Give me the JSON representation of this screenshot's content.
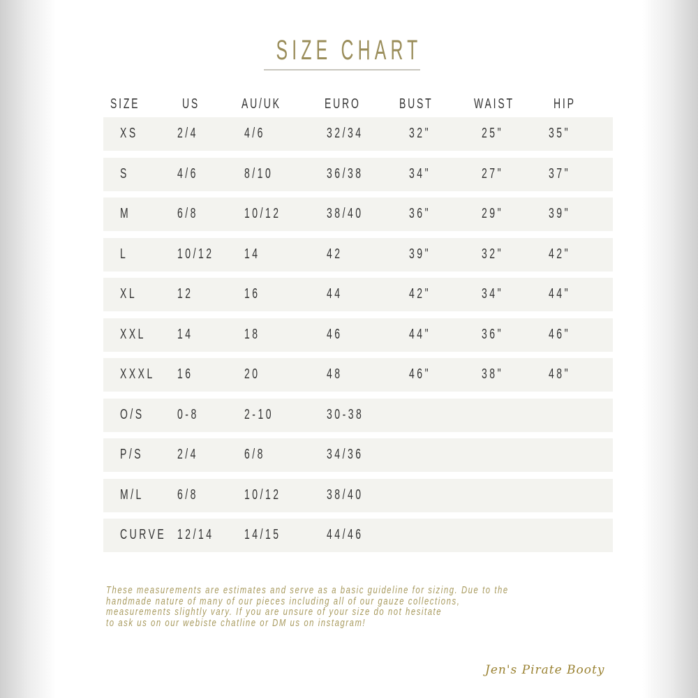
{
  "title": "SIZE CHART",
  "columns": [
    "SIZE",
    "US",
    "AU/UK",
    "EURO",
    "BUST",
    "WAIST",
    "HIP"
  ],
  "rows": [
    [
      "XS",
      "2/4",
      "4/6",
      "32/34",
      "32\"",
      "25\"",
      "35\""
    ],
    [
      "S",
      "4/6",
      "8/10",
      "36/38",
      "34\"",
      "27\"",
      "37\""
    ],
    [
      "M",
      "6/8",
      "10/12",
      "38/40",
      "36\"",
      "29\"",
      "39\""
    ],
    [
      "L",
      "10/12",
      "14",
      "42",
      "39\"",
      "32\"",
      "42\""
    ],
    [
      "XL",
      "12",
      "16",
      "44",
      "42\"",
      "34\"",
      "44\""
    ],
    [
      "XXL",
      "14",
      "18",
      "46",
      "44\"",
      "36\"",
      "46\""
    ],
    [
      "XXXL",
      "16",
      "20",
      "48",
      "46\"",
      "38\"",
      "48\""
    ],
    [
      "O/S",
      "0-8",
      "2-10",
      "30-38",
      "",
      "",
      ""
    ],
    [
      "P/S",
      "2/4",
      "6/8",
      "34/36",
      "",
      "",
      ""
    ],
    [
      "M/L",
      "6/8",
      "10/12",
      "38/40",
      "",
      "",
      ""
    ],
    [
      "CURVE",
      "12/14",
      "14/15",
      "44/46",
      "",
      "",
      ""
    ]
  ],
  "note": [
    "These measurements are estimates and serve as a basic guideline for sizing. Due to the",
    "handmade nature of many of our pieces including all of our gauze collections,",
    "measurements slightly vary. If you are unsure of your size do not hesitate",
    "to ask us on our webiste chatline or DM us on instagram!"
  ],
  "logo": "Jen's Pirate Booty",
  "colors": {
    "accent": "#9a8d5a",
    "row_bg": "#f3f3ef",
    "text": "#333333"
  }
}
